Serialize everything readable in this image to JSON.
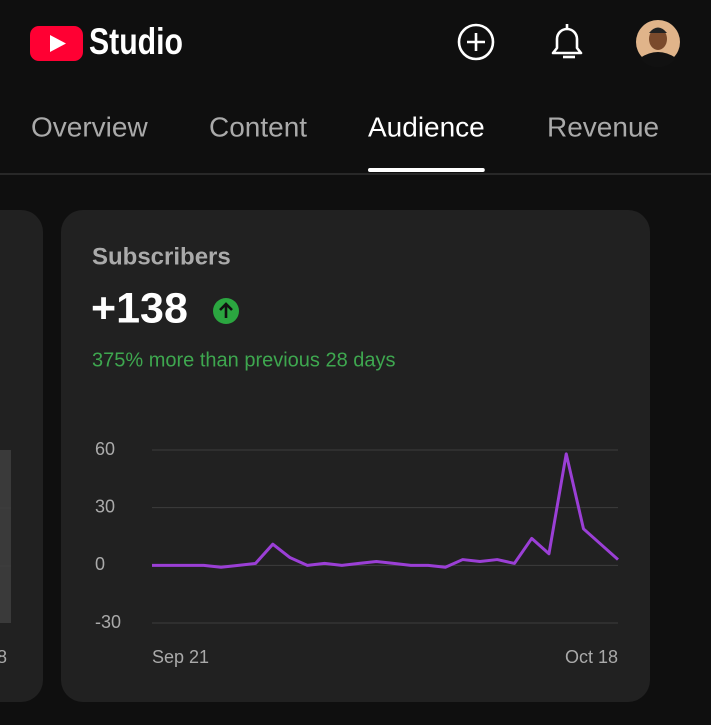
{
  "header": {
    "logo": "Studio"
  },
  "tabs": [
    "Overview",
    "Content",
    "Audience",
    "Revenue"
  ],
  "active_tab": 2,
  "left_card": {
    "label": "8"
  },
  "card": {
    "title": "Subscribers",
    "value": "+138",
    "change": "375% more than previous 28 days"
  },
  "chart_data": {
    "type": "line",
    "x": [
      "Sep 21",
      null,
      null,
      null,
      null,
      null,
      null,
      null,
      null,
      null,
      null,
      null,
      null,
      null,
      null,
      null,
      null,
      null,
      null,
      null,
      null,
      null,
      null,
      null,
      null,
      null,
      null,
      "Oct 18"
    ],
    "series": [
      {
        "name": "Subscribers",
        "color": "#9b3fd6",
        "values": [
          0,
          0,
          0,
          0,
          -1,
          0,
          1,
          11,
          4,
          0,
          1,
          0,
          1,
          2,
          1,
          0,
          0,
          -1,
          3,
          2,
          3,
          1,
          14,
          6,
          58,
          19,
          11,
          3
        ]
      }
    ],
    "ylim": [
      -30,
      60
    ],
    "yticks": [
      60,
      30,
      0,
      -30
    ],
    "grid": true
  }
}
